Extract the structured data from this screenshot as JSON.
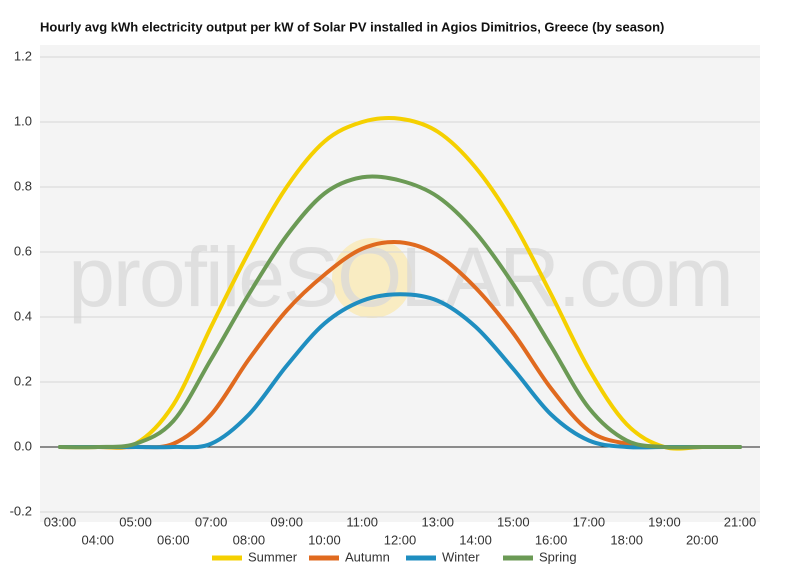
{
  "chart_data": {
    "type": "line",
    "title": "Hourly avg kWh electricity output per kW of Solar PV installed in Agios Dimitrios, Greece (by season)",
    "watermark": "profileSOLAR.com",
    "categories": [
      "03:00",
      "04:00",
      "05:00",
      "06:00",
      "07:00",
      "08:00",
      "09:00",
      "10:00",
      "11:00",
      "12:00",
      "13:00",
      "14:00",
      "15:00",
      "16:00",
      "17:00",
      "18:00",
      "19:00",
      "20:00",
      "21:00"
    ],
    "series": [
      {
        "name": "Summer",
        "color": "#f5d000",
        "values": [
          0,
          0,
          0.01,
          0.13,
          0.37,
          0.6,
          0.8,
          0.94,
          1.0,
          1.01,
          0.97,
          0.86,
          0.69,
          0.47,
          0.24,
          0.07,
          0,
          0,
          0
        ]
      },
      {
        "name": "Autumn",
        "color": "#e06a1f",
        "values": [
          0,
          0,
          0,
          0.01,
          0.1,
          0.27,
          0.42,
          0.53,
          0.61,
          0.63,
          0.59,
          0.49,
          0.35,
          0.18,
          0.05,
          0.01,
          0,
          0,
          0
        ]
      },
      {
        "name": "Winter",
        "color": "#1f8ec0",
        "values": [
          0,
          0,
          0,
          0,
          0.01,
          0.1,
          0.25,
          0.38,
          0.45,
          0.47,
          0.45,
          0.37,
          0.24,
          0.1,
          0.02,
          0,
          0,
          0,
          0
        ]
      },
      {
        "name": "Spring",
        "color": "#6b9a55",
        "values": [
          0,
          0,
          0.01,
          0.08,
          0.27,
          0.47,
          0.65,
          0.78,
          0.83,
          0.82,
          0.77,
          0.66,
          0.5,
          0.31,
          0.12,
          0.02,
          0,
          0,
          0
        ]
      }
    ],
    "ylim": [
      -0.2,
      1.2
    ],
    "yticks": [
      -0.2,
      {
        "value": 0,
        "label": "0.0"
      },
      0.2,
      0.4,
      0.6,
      0.8,
      {
        "value": 1,
        "label": "1.0"
      },
      1.2
    ],
    "grid": true,
    "legend": "bottom"
  }
}
